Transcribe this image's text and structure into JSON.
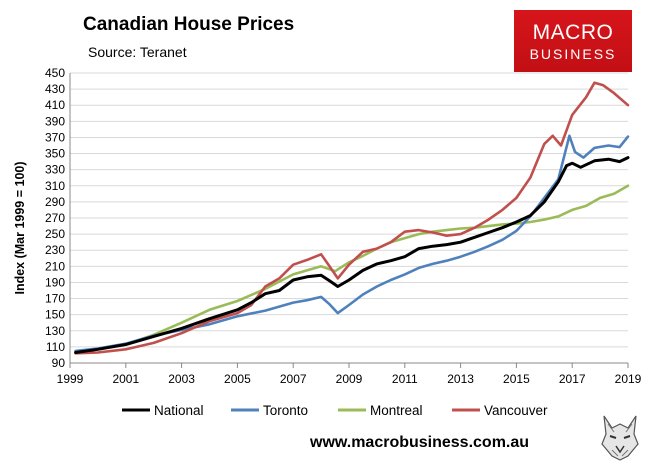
{
  "header": {
    "title": "Canadian House Prices",
    "source": "Source: Teranet"
  },
  "logo": {
    "line1": "MACRO",
    "line2": "BUSINESS"
  },
  "footer": {
    "url": "www.macrobusiness.com.au"
  },
  "colors": {
    "National": "#000000",
    "Toronto": "#4f81bd",
    "Montreal": "#9bbb59",
    "Vancouver": "#c0504d",
    "logo_bg": "#d6151b"
  },
  "chart_data": {
    "type": "line",
    "title": "Canadian House Prices",
    "subtitle": "Source: Teranet",
    "xlabel": "",
    "ylabel": "Index (Mar 1999 = 100)",
    "xlim": [
      1999,
      2019
    ],
    "ylim": [
      90,
      450
    ],
    "x_ticks": [
      1999,
      2001,
      2003,
      2005,
      2007,
      2009,
      2011,
      2013,
      2015,
      2017,
      2019
    ],
    "y_ticks": [
      90,
      110,
      130,
      150,
      170,
      190,
      210,
      230,
      250,
      270,
      290,
      310,
      330,
      350,
      370,
      390,
      410,
      430,
      450
    ],
    "grid": "horizontal",
    "legend": "bottom",
    "series": [
      {
        "name": "National",
        "x": [
          1999.2,
          2000,
          2001,
          2002,
          2003,
          2004,
          2005,
          2005.5,
          2006,
          2006.5,
          2007,
          2007.5,
          2008,
          2008.3,
          2008.6,
          2009,
          2009.5,
          2010,
          2010.5,
          2011,
          2011.5,
          2012,
          2012.5,
          2013,
          2013.5,
          2014,
          2014.5,
          2015,
          2015.5,
          2016,
          2016.5,
          2016.8,
          2017,
          2017.3,
          2017.8,
          2018.3,
          2018.7,
          2019
        ],
        "values": [
          103,
          107,
          113,
          123,
          133,
          145,
          156,
          165,
          176,
          180,
          193,
          197,
          199,
          192,
          185,
          193,
          205,
          213,
          217,
          222,
          232,
          235,
          237,
          240,
          246,
          252,
          258,
          265,
          273,
          290,
          315,
          335,
          338,
          333,
          341,
          343,
          340,
          345
        ]
      },
      {
        "name": "Toronto",
        "x": [
          1999.2,
          2000,
          2001,
          2002,
          2003,
          2004,
          2005,
          2006,
          2007,
          2007.5,
          2008,
          2008.3,
          2008.6,
          2009,
          2009.5,
          2010,
          2010.5,
          2011,
          2011.5,
          2012,
          2012.5,
          2013,
          2013.5,
          2014,
          2014.5,
          2015,
          2015.5,
          2016,
          2016.5,
          2016.9,
          2017.1,
          2017.4,
          2017.8,
          2018.3,
          2018.7,
          2019
        ],
        "values": [
          105,
          108,
          114,
          124,
          131,
          138,
          148,
          155,
          165,
          168,
          172,
          163,
          152,
          162,
          175,
          185,
          193,
          200,
          208,
          213,
          217,
          222,
          228,
          235,
          243,
          254,
          272,
          295,
          318,
          372,
          352,
          345,
          357,
          360,
          358,
          371
        ]
      },
      {
        "name": "Montreal",
        "x": [
          1999.2,
          2000,
          2001,
          2002,
          2003,
          2004,
          2005,
          2006,
          2007,
          2008,
          2008.5,
          2009,
          2009.5,
          2010,
          2010.5,
          2011,
          2011.5,
          2012,
          2012.5,
          2013,
          2013.5,
          2014,
          2014.5,
          2015,
          2015.5,
          2016,
          2016.5,
          2017,
          2017.5,
          2018,
          2018.5,
          2019
        ],
        "values": [
          104,
          107,
          113,
          125,
          140,
          156,
          167,
          182,
          200,
          210,
          204,
          215,
          223,
          232,
          240,
          245,
          250,
          253,
          255,
          257,
          258,
          260,
          262,
          263,
          265,
          268,
          272,
          280,
          285,
          295,
          300,
          310
        ]
      },
      {
        "name": "Vancouver",
        "x": [
          1999.2,
          2000,
          2001,
          2002,
          2003,
          2004,
          2005,
          2005.5,
          2006,
          2006.5,
          2007,
          2007.5,
          2008,
          2008.3,
          2008.6,
          2009,
          2009.5,
          2010,
          2010.5,
          2011,
          2011.5,
          2012,
          2012.5,
          2013,
          2013.5,
          2014,
          2014.5,
          2015,
          2015.5,
          2016,
          2016.3,
          2016.6,
          2017,
          2017.5,
          2017.8,
          2018.1,
          2018.5,
          2019
        ],
        "values": [
          102,
          103,
          107,
          115,
          127,
          142,
          152,
          162,
          185,
          195,
          212,
          218,
          225,
          210,
          195,
          212,
          228,
          232,
          240,
          253,
          255,
          252,
          248,
          250,
          258,
          268,
          280,
          295,
          320,
          362,
          372,
          360,
          398,
          420,
          438,
          435,
          425,
          410
        ]
      }
    ]
  }
}
